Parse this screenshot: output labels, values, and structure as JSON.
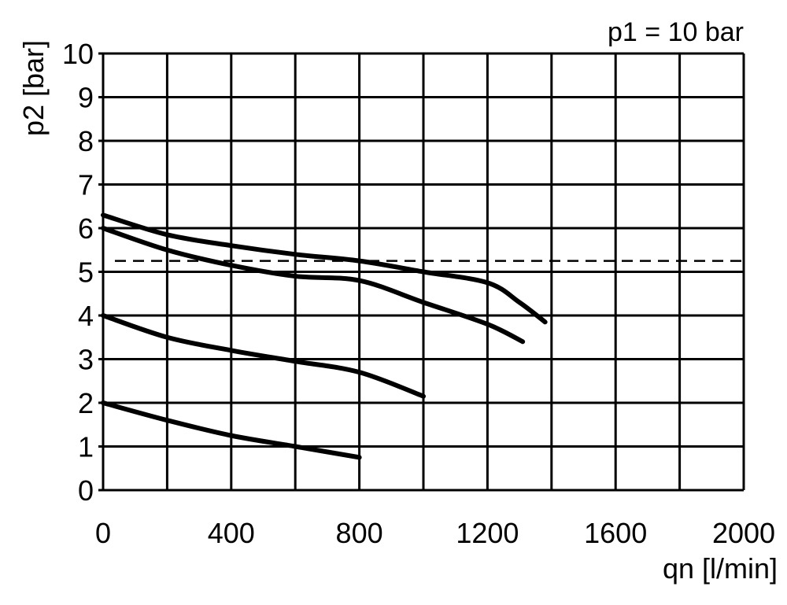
{
  "chart_data": {
    "type": "line",
    "annotation": "p1 = 10 bar",
    "xlabel": "qn [l/min]",
    "ylabel": "p2 [bar]",
    "xlim": [
      0,
      2000
    ],
    "ylim": [
      0,
      10
    ],
    "x_ticks": [
      "0",
      "400",
      "800",
      "1200",
      "1600",
      "2000"
    ],
    "x_tick_values": [
      0,
      400,
      800,
      1200,
      1600,
      2000
    ],
    "x_grid_step": 200,
    "y_ticks": [
      "0",
      "1",
      "2",
      "3",
      "4",
      "5",
      "6",
      "7",
      "8",
      "9",
      "10"
    ],
    "y_tick_values": [
      0,
      1,
      2,
      3,
      4,
      5,
      6,
      7,
      8,
      9,
      10
    ],
    "grid": true,
    "reference_line": {
      "y": 5.25,
      "style": "dashed"
    },
    "series": [
      {
        "x": [
          0,
          200,
          400,
          600,
          800,
          1000,
          1200,
          1300,
          1380
        ],
        "y": [
          6.3,
          5.85,
          5.6,
          5.4,
          5.25,
          5.0,
          4.75,
          4.3,
          3.85
        ]
      },
      {
        "x": [
          0,
          200,
          400,
          600,
          800,
          1000,
          1200,
          1310
        ],
        "y": [
          6.0,
          5.5,
          5.15,
          4.9,
          4.8,
          4.3,
          3.8,
          3.4
        ]
      },
      {
        "x": [
          0,
          200,
          400,
          600,
          800,
          1000
        ],
        "y": [
          4.0,
          3.5,
          3.2,
          2.95,
          2.7,
          2.15
        ]
      },
      {
        "x": [
          0,
          200,
          400,
          600,
          800
        ],
        "y": [
          2.0,
          1.6,
          1.25,
          1.0,
          0.75
        ]
      }
    ]
  }
}
